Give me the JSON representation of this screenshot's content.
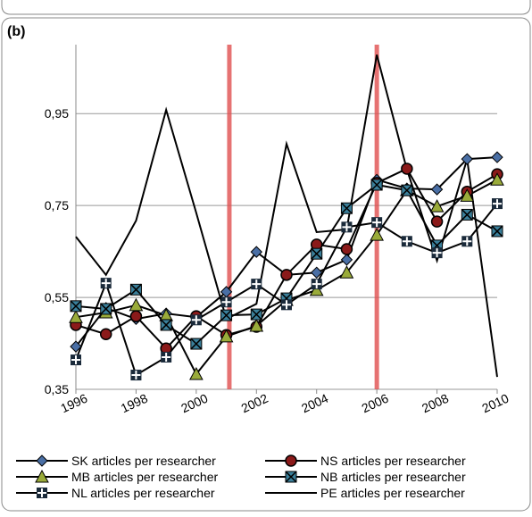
{
  "chart_data": {
    "type": "line",
    "panel_label": "(b)",
    "x": [
      1996,
      1997,
      1998,
      1999,
      2000,
      2001,
      2002,
      2003,
      2004,
      2005,
      2006,
      2007,
      2008,
      2009,
      2010
    ],
    "xlim": [
      1996,
      2010
    ],
    "xticks": [
      1996,
      1998,
      2000,
      2002,
      2004,
      2006,
      2008,
      2010
    ],
    "ylim": [
      0.35,
      1.1
    ],
    "yticks": [
      {
        "value": 0.35,
        "label": "0,35"
      },
      {
        "value": 0.55,
        "label": "0,55"
      },
      {
        "value": 0.75,
        "label": "0,75"
      },
      {
        "value": 0.95,
        "label": "0,95"
      }
    ],
    "grid": true,
    "vlines": [
      2001.1,
      2006
    ],
    "vline_color": "#e05050",
    "series": [
      {
        "name": "SK articles per researcher",
        "marker": "diamond",
        "color": "#4a6fa5",
        "values": [
          0.443,
          0.527,
          0.503,
          0.515,
          0.507,
          0.562,
          0.649,
          0.599,
          0.604,
          0.632,
          0.806,
          0.787,
          0.785,
          0.851,
          0.855
        ]
      },
      {
        "name": "NS articles per researcher",
        "marker": "circle",
        "color": "#8b1a1a",
        "values": [
          0.49,
          0.47,
          0.509,
          0.439,
          0.509,
          0.468,
          0.486,
          0.599,
          0.665,
          0.655,
          0.799,
          0.83,
          0.715,
          0.78,
          0.818
        ]
      },
      {
        "name": "MB articles per researcher",
        "marker": "triangle",
        "color": "#9aab3a",
        "values": [
          0.507,
          0.517,
          0.533,
          0.511,
          0.383,
          0.465,
          0.488,
          0.544,
          0.566,
          0.604,
          0.686,
          0.783,
          0.748,
          0.771,
          0.806
        ]
      },
      {
        "name": "NB articles per researcher",
        "marker": "square-x",
        "color": "#3a7f9a",
        "values": [
          0.531,
          0.525,
          0.567,
          0.49,
          0.449,
          0.511,
          0.513,
          0.548,
          0.645,
          0.744,
          0.795,
          0.783,
          0.663,
          0.73,
          0.694
        ]
      },
      {
        "name": "NL articles per researcher",
        "marker": "square-plus",
        "color": "#1a2a3a",
        "values": [
          0.414,
          0.581,
          0.381,
          0.42,
          0.501,
          0.54,
          0.579,
          0.534,
          0.579,
          0.703,
          0.713,
          0.672,
          0.647,
          0.672,
          0.754
        ]
      },
      {
        "name": "PE articles per researcher",
        "marker": "none",
        "color": "#000000",
        "values": [
          0.682,
          0.599,
          0.717,
          0.958,
          0.734,
          0.503,
          0.536,
          0.884,
          0.692,
          0.698,
          1.078,
          0.828,
          0.63,
          0.851,
          0.377
        ]
      }
    ]
  }
}
